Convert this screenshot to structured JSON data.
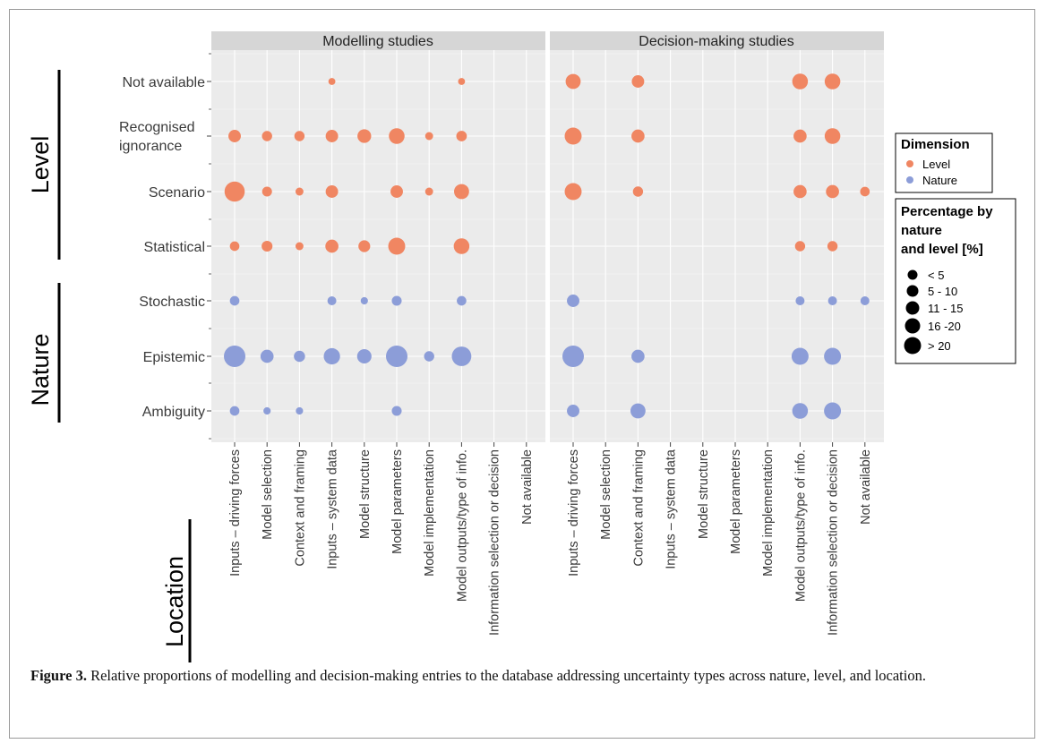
{
  "chart_data": {
    "type": "scatter",
    "panels": [
      "Modelling studies",
      "Decision-making studies"
    ],
    "y_categories": [
      "Not available",
      "Recognised ignorance",
      "Scenario",
      "Statistical",
      "Stochastic",
      "Epistemic",
      "Ambiguity"
    ],
    "x_categories": [
      "Inputs – driving forces",
      "Model selection",
      "Context and framing",
      "Inputs – system data",
      "Model structure",
      "Model parameters",
      "Model implementation",
      "Model outputs/type of info.",
      "Information selection or decision",
      "Not available"
    ],
    "y_groups": [
      {
        "label": "Level",
        "categories": [
          "Not available",
          "Recognised ignorance",
          "Scenario",
          "Statistical"
        ]
      },
      {
        "label": "Nature",
        "categories": [
          "Stochastic",
          "Epistemic",
          "Ambiguity"
        ]
      }
    ],
    "x_group_label": "Location",
    "legend": {
      "dimension_title": "Dimension",
      "dimension_items": [
        {
          "label": "Level",
          "color": "#f08662"
        },
        {
          "label": "Nature",
          "color": "#8c9dd8"
        }
      ],
      "size_title_lines": [
        "Percentage by",
        "nature",
        "and level [%]"
      ],
      "size_items": [
        "< 5",
        "5 - 10",
        "11 - 15",
        "16 -20",
        "> 20"
      ]
    },
    "colors": {
      "Level": "#f08662",
      "Nature": "#8c9dd8"
    },
    "size_class_note_values": [
      1,
      2,
      3,
      4,
      5
    ],
    "points": [
      {
        "panel": "Modelling studies",
        "x": "Inputs – system data",
        "y": "Not available",
        "size_class": 0.5
      },
      {
        "panel": "Modelling studies",
        "x": "Model outputs/type of info.",
        "y": "Not available",
        "size_class": 0.5
      },
      {
        "panel": "Modelling studies",
        "x": "Inputs – driving forces",
        "y": "Recognised ignorance",
        "size_class": 2.2
      },
      {
        "panel": "Modelling studies",
        "x": "Model selection",
        "y": "Recognised ignorance",
        "size_class": 1.5
      },
      {
        "panel": "Modelling studies",
        "x": "Context and framing",
        "y": "Recognised ignorance",
        "size_class": 1.5
      },
      {
        "panel": "Modelling studies",
        "x": "Inputs – system data",
        "y": "Recognised ignorance",
        "size_class": 2.2
      },
      {
        "panel": "Modelling studies",
        "x": "Model structure",
        "y": "Recognised ignorance",
        "size_class": 2.6
      },
      {
        "panel": "Modelling studies",
        "x": "Model parameters",
        "y": "Recognised ignorance",
        "size_class": 3.2
      },
      {
        "panel": "Modelling studies",
        "x": "Model implementation",
        "y": "Recognised ignorance",
        "size_class": 0.8
      },
      {
        "panel": "Modelling studies",
        "x": "Model outputs/type of info.",
        "y": "Recognised ignorance",
        "size_class": 1.6
      },
      {
        "panel": "Modelling studies",
        "x": "Inputs – driving forces",
        "y": "Scenario",
        "size_class": 4.6
      },
      {
        "panel": "Modelling studies",
        "x": "Model selection",
        "y": "Scenario",
        "size_class": 1.4
      },
      {
        "panel": "Modelling studies",
        "x": "Context and framing",
        "y": "Scenario",
        "size_class": 0.8
      },
      {
        "panel": "Modelling studies",
        "x": "Inputs – system data",
        "y": "Scenario",
        "size_class": 2.2
      },
      {
        "panel": "Modelling studies",
        "x": "Model parameters",
        "y": "Scenario",
        "size_class": 2.2
      },
      {
        "panel": "Modelling studies",
        "x": "Model implementation",
        "y": "Scenario",
        "size_class": 0.8
      },
      {
        "panel": "Modelling studies",
        "x": "Model outputs/type of info.",
        "y": "Scenario",
        "size_class": 3.0
      },
      {
        "panel": "Modelling studies",
        "x": "Inputs – driving forces",
        "y": "Statistical",
        "size_class": 1.3
      },
      {
        "panel": "Modelling studies",
        "x": "Model selection",
        "y": "Statistical",
        "size_class": 1.7
      },
      {
        "panel": "Modelling studies",
        "x": "Context and framing",
        "y": "Statistical",
        "size_class": 0.8
      },
      {
        "panel": "Modelling studies",
        "x": "Inputs – system data",
        "y": "Statistical",
        "size_class": 2.4
      },
      {
        "panel": "Modelling studies",
        "x": "Model structure",
        "y": "Statistical",
        "size_class": 2.0
      },
      {
        "panel": "Modelling studies",
        "x": "Model parameters",
        "y": "Statistical",
        "size_class": 3.6
      },
      {
        "panel": "Modelling studies",
        "x": "Model outputs/type of info.",
        "y": "Statistical",
        "size_class": 3.2
      },
      {
        "panel": "Modelling studies",
        "x": "Inputs – driving forces",
        "y": "Stochastic",
        "size_class": 1.3
      },
      {
        "panel": "Modelling studies",
        "x": "Inputs – system data",
        "y": "Stochastic",
        "size_class": 1.1
      },
      {
        "panel": "Modelling studies",
        "x": "Model structure",
        "y": "Stochastic",
        "size_class": 0.6
      },
      {
        "panel": "Modelling studies",
        "x": "Model parameters",
        "y": "Stochastic",
        "size_class": 1.4
      },
      {
        "panel": "Modelling studies",
        "x": "Model outputs/type of info.",
        "y": "Stochastic",
        "size_class": 1.3
      },
      {
        "panel": "Modelling studies",
        "x": "Inputs – driving forces",
        "y": "Epistemic",
        "size_class": 5.0
      },
      {
        "panel": "Modelling studies",
        "x": "Model selection",
        "y": "Epistemic",
        "size_class": 2.4
      },
      {
        "panel": "Modelling studies",
        "x": "Context and framing",
        "y": "Epistemic",
        "size_class": 1.8
      },
      {
        "panel": "Modelling studies",
        "x": "Inputs – system data",
        "y": "Epistemic",
        "size_class": 3.4
      },
      {
        "panel": "Modelling studies",
        "x": "Model structure",
        "y": "Epistemic",
        "size_class": 2.8
      },
      {
        "panel": "Modelling studies",
        "x": "Model parameters",
        "y": "Epistemic",
        "size_class": 5.0
      },
      {
        "panel": "Modelling studies",
        "x": "Model implementation",
        "y": "Epistemic",
        "size_class": 1.5
      },
      {
        "panel": "Modelling studies",
        "x": "Model outputs/type of info.",
        "y": "Epistemic",
        "size_class": 4.4
      },
      {
        "panel": "Modelling studies",
        "x": "Inputs – driving forces",
        "y": "Ambiguity",
        "size_class": 1.3
      },
      {
        "panel": "Modelling studies",
        "x": "Model selection",
        "y": "Ambiguity",
        "size_class": 0.6
      },
      {
        "panel": "Modelling studies",
        "x": "Context and framing",
        "y": "Ambiguity",
        "size_class": 0.6
      },
      {
        "panel": "Modelling studies",
        "x": "Model parameters",
        "y": "Ambiguity",
        "size_class": 1.4
      },
      {
        "panel": "Decision-making studies",
        "x": "Inputs – driving forces",
        "y": "Not available",
        "size_class": 3.0
      },
      {
        "panel": "Decision-making studies",
        "x": "Context and framing",
        "y": "Not available",
        "size_class": 2.2
      },
      {
        "panel": "Decision-making studies",
        "x": "Model outputs/type of info.",
        "y": "Not available",
        "size_class": 3.2
      },
      {
        "panel": "Decision-making studies",
        "x": "Information selection or decision",
        "y": "Not available",
        "size_class": 3.2
      },
      {
        "panel": "Decision-making studies",
        "x": "Inputs – driving forces",
        "y": "Recognised ignorance",
        "size_class": 3.6
      },
      {
        "panel": "Decision-making studies",
        "x": "Context and framing",
        "y": "Recognised ignorance",
        "size_class": 2.4
      },
      {
        "panel": "Decision-making studies",
        "x": "Model outputs/type of info.",
        "y": "Recognised ignorance",
        "size_class": 2.4
      },
      {
        "panel": "Decision-making studies",
        "x": "Information selection or decision",
        "y": "Recognised ignorance",
        "size_class": 3.2
      },
      {
        "panel": "Decision-making studies",
        "x": "Inputs – driving forces",
        "y": "Scenario",
        "size_class": 3.6
      },
      {
        "panel": "Decision-making studies",
        "x": "Context and framing",
        "y": "Scenario",
        "size_class": 1.5
      },
      {
        "panel": "Decision-making studies",
        "x": "Model outputs/type of info.",
        "y": "Scenario",
        "size_class": 2.4
      },
      {
        "panel": "Decision-making studies",
        "x": "Information selection or decision",
        "y": "Scenario",
        "size_class": 2.4
      },
      {
        "panel": "Decision-making studies",
        "x": "Not available",
        "y": "Scenario",
        "size_class": 1.3
      },
      {
        "panel": "Decision-making studies",
        "x": "Model outputs/type of info.",
        "y": "Statistical",
        "size_class": 1.5
      },
      {
        "panel": "Decision-making studies",
        "x": "Information selection or decision",
        "y": "Statistical",
        "size_class": 1.5
      },
      {
        "panel": "Decision-making studies",
        "x": "Inputs – driving forces",
        "y": "Stochastic",
        "size_class": 2.2
      },
      {
        "panel": "Decision-making studies",
        "x": "Model outputs/type of info.",
        "y": "Stochastic",
        "size_class": 1.1
      },
      {
        "panel": "Decision-making studies",
        "x": "Information selection or decision",
        "y": "Stochastic",
        "size_class": 1.1
      },
      {
        "panel": "Decision-making studies",
        "x": "Not available",
        "y": "Stochastic",
        "size_class": 1.1
      },
      {
        "panel": "Decision-making studies",
        "x": "Inputs – driving forces",
        "y": "Epistemic",
        "size_class": 5.0
      },
      {
        "panel": "Decision-making studies",
        "x": "Context and framing",
        "y": "Epistemic",
        "size_class": 2.4
      },
      {
        "panel": "Decision-making studies",
        "x": "Model outputs/type of info.",
        "y": "Epistemic",
        "size_class": 3.6
      },
      {
        "panel": "Decision-making studies",
        "x": "Information selection or decision",
        "y": "Epistemic",
        "size_class": 3.6
      },
      {
        "panel": "Decision-making studies",
        "x": "Inputs – driving forces",
        "y": "Ambiguity",
        "size_class": 2.2
      },
      {
        "panel": "Decision-making studies",
        "x": "Context and framing",
        "y": "Ambiguity",
        "size_class": 3.0
      },
      {
        "panel": "Decision-making studies",
        "x": "Model outputs/type of info.",
        "y": "Ambiguity",
        "size_class": 3.2
      },
      {
        "panel": "Decision-making studies",
        "x": "Information selection or decision",
        "y": "Ambiguity",
        "size_class": 3.6
      }
    ]
  },
  "caption": {
    "label": "Figure 3.",
    "text": " Relative proportions of modelling and decision-making entries to the database addressing uncertainty types across nature, level, and location."
  }
}
